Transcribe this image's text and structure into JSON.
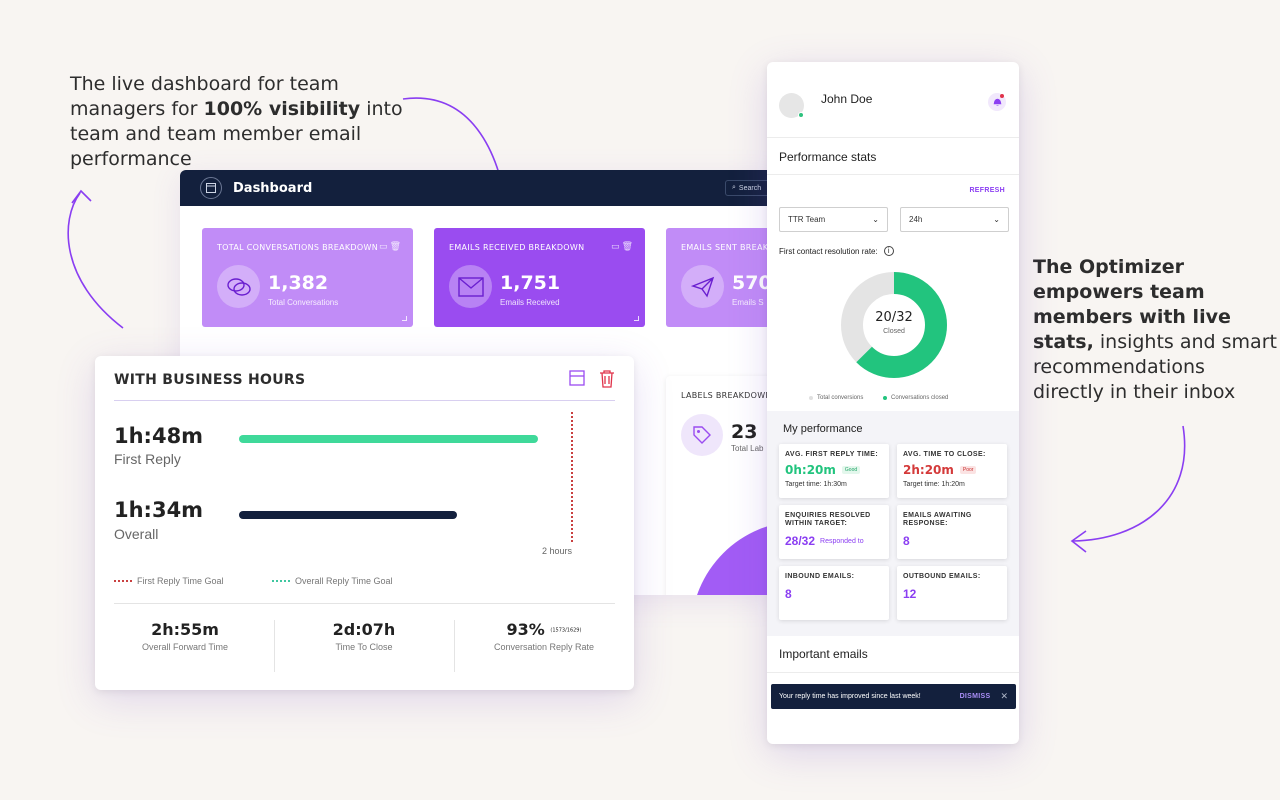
{
  "captions": {
    "left_pre": "The live dashboard for team managers for ",
    "left_bold": "100% visibility",
    "left_post": " into team and team member email performance",
    "right_bold": "The Optimizer empowers team members with live stats,",
    "right_post": " insights and smart recommendations directly in their inbox"
  },
  "dashboard": {
    "title": "Dashboard",
    "search_placeholder": "Search",
    "cards": [
      {
        "title": "TOTAL CONVERSATIONS BREAKDOWN",
        "value": "1,382",
        "sub": "Total Conversations",
        "icon": "chat-bubbles-icon",
        "color": "#c18cf7"
      },
      {
        "title": "EMAILS RECEIVED BREAKDOWN",
        "value": "1,751",
        "sub": "Emails Received",
        "icon": "envelope-icon",
        "color": "#9a4cf0"
      },
      {
        "title": "EMAILS SENT BREAKD",
        "value": "570",
        "sub": "Emails S",
        "icon": "paper-plane-icon",
        "color": "#c18cf7"
      }
    ],
    "labels": {
      "title": "LABELS BREAKDOWN",
      "value": "23",
      "sub": "Total Lab",
      "icon": "tag-icon"
    }
  },
  "business_hours": {
    "title": "WITH BUSINESS HOURS",
    "first_reply": {
      "value": "1h:48m",
      "label": "First Reply",
      "color": "#3fd99a"
    },
    "overall": {
      "value": "1h:34m",
      "label": "Overall",
      "color": "#13203d"
    },
    "axis_label": "2 hours",
    "legend": [
      {
        "label": "First Reply Time Goal",
        "color": "#c94040"
      },
      {
        "label": "Overall Reply Time Goal",
        "color": "#3fc7a0"
      }
    ],
    "stats": [
      {
        "value": "2h:55m",
        "label": "Overall Forward Time"
      },
      {
        "value": "2d:07h",
        "label": "Time To Close"
      },
      {
        "value": "93%",
        "extra": "(1573/1629)",
        "label": "Conversation Reply Rate"
      }
    ]
  },
  "optimizer": {
    "user_name": "John Doe",
    "performance_title": "Performance stats",
    "refresh_label": "REFRESH",
    "team_select": "TTR Team",
    "period_select": "24h",
    "fcr_label": "First contact resolution rate:",
    "donut": {
      "value": "20/32",
      "label": "Closed",
      "closed": 20,
      "total": 32,
      "colors": {
        "closed": "#22c47e",
        "total": "#e4e4e4"
      }
    },
    "donut_legend": [
      "Total conversions",
      "Conversations closed"
    ],
    "my_performance_title": "My performance",
    "cards": [
      {
        "label": "AVG. FIRST REPLY TIME:",
        "value": "0h:20m",
        "tag": "Good",
        "target": "Target time: 1h:30m",
        "color": "#22c47e"
      },
      {
        "label": "AVG. TIME TO CLOSE:",
        "value": "2h:20m",
        "tag": "Poor",
        "target": "Target time: 1h:20m",
        "color": "#d43a3a"
      },
      {
        "label": "ENQUIRIES RESOLVED WITHIN TARGET:",
        "value": "28/32",
        "note": "Responded to"
      },
      {
        "label": "EMAILS AWAITING RESPONSE:",
        "value": "8"
      },
      {
        "label": "INBOUND EMAILS:",
        "value": "8"
      },
      {
        "label": "OUTBOUND EMAILS:",
        "value": "12"
      }
    ],
    "important_title": "Important emails",
    "toast": {
      "message": "Your reply time has improved since last week!",
      "dismiss": "DISMISS",
      "close": "✕"
    }
  }
}
